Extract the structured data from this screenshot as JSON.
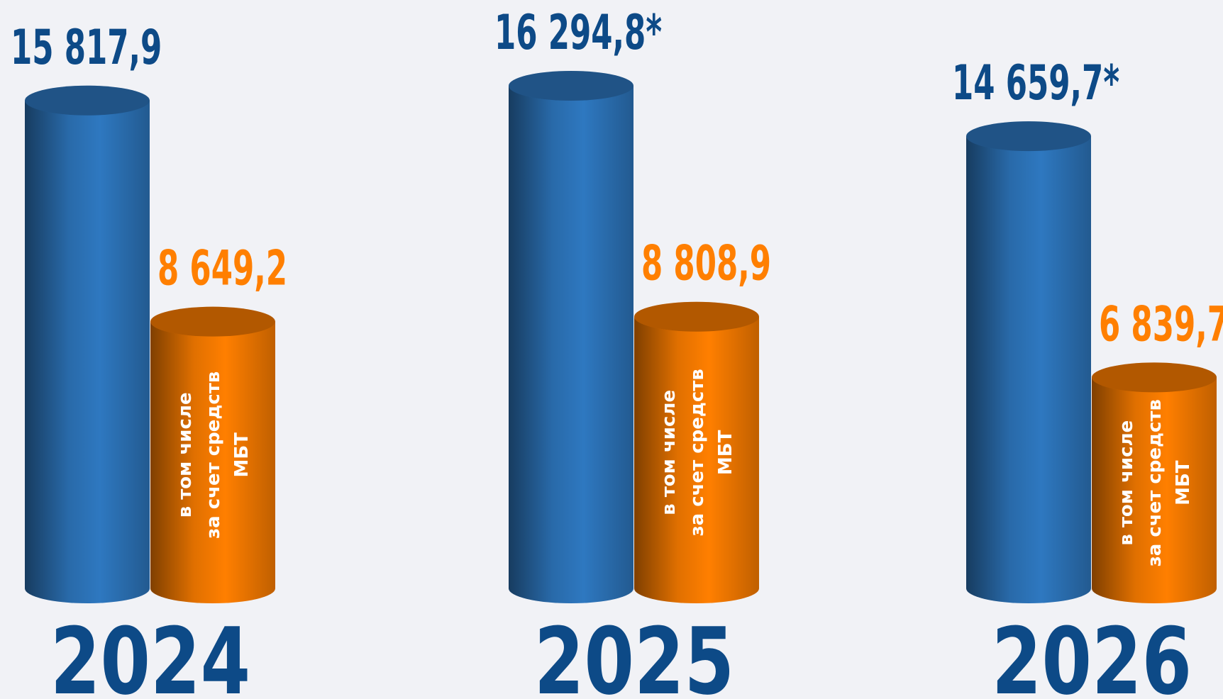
{
  "chart_data": {
    "type": "cylinder-bar",
    "categories": [
      "2024",
      "2025",
      "2026"
    ],
    "series": [
      {
        "color": "#2e78c0",
        "label_color": "#0d4a87",
        "values": [
          15817.9,
          16294.8,
          14659.7
        ],
        "value_labels": [
          "15 817,9",
          "16 294,8*",
          "14 659,7*"
        ]
      },
      {
        "color": "#ff7f00",
        "label_color": "#ff7f00",
        "values": [
          8649.2,
          8808.9,
          6839.7
        ],
        "value_labels": [
          "8 649,2",
          "8 808,9",
          "6 839,7"
        ]
      }
    ],
    "annotation": [
      "в том числе",
      "за счет средств",
      "МБТ"
    ]
  }
}
